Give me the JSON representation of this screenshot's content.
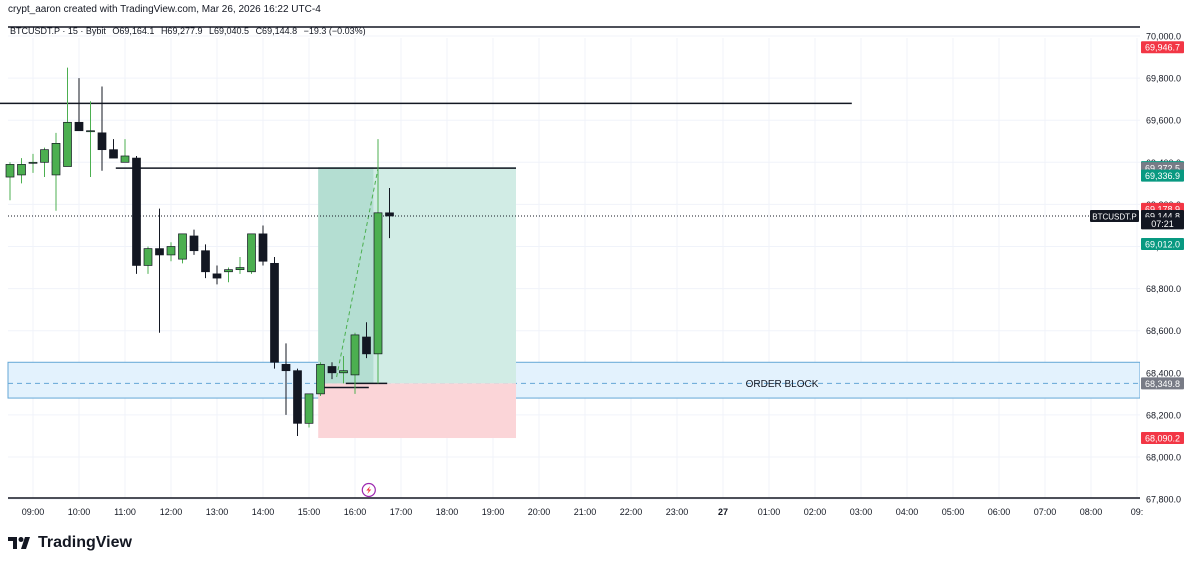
{
  "header": {
    "attribution": "crypt_aaron created with TradingView.com, Mar 26, 2026 16:22 UTC-4"
  },
  "legend": {
    "symbol": "BTCUSDT.P · 15 · Bybit",
    "open": "O69,164.1",
    "high": "H69,277.9",
    "low": "L69,040.5",
    "close": "C69,144.8",
    "change": "−19.3 (−0.03%)"
  },
  "brand": {
    "name": "TradingView"
  },
  "colors": {
    "up": "#4caf50",
    "down": "#131722",
    "accent_red": "#f23645",
    "accent_green": "#089981",
    "target_zone": "#d1ece5",
    "stop_zone": "#fbd5d8",
    "order_block": "#e3f2fd"
  },
  "chart_data": {
    "type": "candlestick",
    "title": "",
    "xlabel": "",
    "ylabel": "",
    "ylim": [
      67780,
      70050
    ],
    "y_ticks": [
      "70,000.0",
      "69,800.0",
      "69,600.0",
      "69,400.0",
      "69,200.0",
      "69,000.0",
      "68,800.0",
      "68,600.0",
      "68,400.0",
      "68,200.0",
      "68,000.0",
      "67,800.0"
    ],
    "y_tick_values": [
      70000,
      69800,
      69600,
      69400,
      69200,
      69000,
      68800,
      68600,
      68400,
      68200,
      68000,
      67800
    ],
    "x_ticks": [
      "09:00",
      "10:00",
      "11:00",
      "12:00",
      "13:00",
      "14:00",
      "15:00",
      "16:00",
      "17:00",
      "18:00",
      "19:00",
      "20:00",
      "21:00",
      "22:00",
      "23:00",
      "27",
      "01:00",
      "02:00",
      "03:00",
      "04:00",
      "05:00",
      "06:00",
      "07:00",
      "08:00",
      "09:"
    ],
    "x_tick_hours": [
      9,
      10,
      11,
      12,
      13,
      14,
      15,
      16,
      17,
      18,
      19,
      20,
      21,
      22,
      23,
      24,
      25,
      26,
      27,
      28,
      29,
      30,
      31,
      32,
      33
    ],
    "candles": [
      {
        "t": 8.5,
        "o": 69330,
        "h": 69400,
        "l": 69220,
        "c": 69390
      },
      {
        "t": 8.75,
        "o": 69340,
        "h": 69420,
        "l": 69300,
        "c": 69390
      },
      {
        "t": 9.0,
        "o": 69400,
        "h": 69440,
        "l": 69350,
        "c": 69400
      },
      {
        "t": 9.25,
        "o": 69400,
        "h": 69470,
        "l": 69330,
        "c": 69460
      },
      {
        "t": 9.5,
        "o": 69340,
        "h": 69540,
        "l": 69170,
        "c": 69490
      },
      {
        "t": 9.75,
        "o": 69380,
        "h": 69850,
        "l": 69380,
        "c": 69590
      },
      {
        "t": 10.0,
        "o": 69590,
        "h": 69800,
        "l": 69560,
        "c": 69550
      },
      {
        "t": 10.25,
        "o": 69550,
        "h": 69690,
        "l": 69330,
        "c": 69550
      },
      {
        "t": 10.5,
        "o": 69540,
        "h": 69760,
        "l": 69360,
        "c": 69460
      },
      {
        "t": 10.75,
        "o": 69460,
        "h": 69510,
        "l": 69440,
        "c": 69420
      },
      {
        "t": 11.0,
        "o": 69400,
        "h": 69510,
        "l": 69400,
        "c": 69430
      },
      {
        "t": 11.25,
        "o": 69420,
        "h": 69430,
        "l": 68870,
        "c": 68910
      },
      {
        "t": 11.5,
        "o": 68910,
        "h": 69000,
        "l": 68870,
        "c": 68990
      },
      {
        "t": 11.75,
        "o": 68990,
        "h": 69180,
        "l": 68590,
        "c": 68960
      },
      {
        "t": 12.0,
        "o": 68960,
        "h": 69020,
        "l": 68930,
        "c": 69000
      },
      {
        "t": 12.25,
        "o": 68940,
        "h": 69060,
        "l": 68920,
        "c": 69060
      },
      {
        "t": 12.5,
        "o": 69050,
        "h": 69080,
        "l": 68960,
        "c": 68980
      },
      {
        "t": 12.75,
        "o": 68980,
        "h": 69010,
        "l": 68850,
        "c": 68880
      },
      {
        "t": 13.0,
        "o": 68870,
        "h": 68910,
        "l": 68820,
        "c": 68850
      },
      {
        "t": 13.25,
        "o": 68880,
        "h": 68900,
        "l": 68830,
        "c": 68890
      },
      {
        "t": 13.5,
        "o": 68890,
        "h": 68950,
        "l": 68870,
        "c": 68900
      },
      {
        "t": 13.75,
        "o": 68880,
        "h": 69060,
        "l": 68870,
        "c": 69060
      },
      {
        "t": 14.0,
        "o": 69060,
        "h": 69100,
        "l": 68910,
        "c": 68930
      },
      {
        "t": 14.25,
        "o": 68920,
        "h": 68950,
        "l": 68420,
        "c": 68450
      },
      {
        "t": 14.5,
        "o": 68440,
        "h": 68540,
        "l": 68200,
        "c": 68410
      },
      {
        "t": 14.75,
        "o": 68410,
        "h": 68420,
        "l": 68100,
        "c": 68160
      },
      {
        "t": 15.0,
        "o": 68160,
        "h": 68300,
        "l": 68140,
        "c": 68300
      },
      {
        "t": 15.25,
        "o": 68300,
        "h": 68450,
        "l": 68290,
        "c": 68440
      },
      {
        "t": 15.5,
        "o": 68430,
        "h": 68450,
        "l": 68370,
        "c": 68400
      },
      {
        "t": 15.75,
        "o": 68400,
        "h": 68480,
        "l": 68350,
        "c": 68410
      },
      {
        "t": 16.0,
        "o": 68390,
        "h": 68590,
        "l": 68300,
        "c": 68580
      },
      {
        "t": 16.25,
        "o": 68570,
        "h": 68640,
        "l": 68470,
        "c": 68490
      },
      {
        "t": 16.5,
        "o": 68490,
        "h": 69510,
        "l": 68350,
        "c": 69160
      },
      {
        "t": 16.75,
        "o": 69160,
        "h": 69278,
        "l": 69040,
        "c": 69145
      }
    ],
    "horizontal_lines": [
      {
        "price": 69680,
        "from_hour": 8.0,
        "to_hour": 26.8
      },
      {
        "price": 69372.5,
        "from_hour": 10.8,
        "to_hour": 19.5
      },
      {
        "price": 68349.8,
        "from_hour": 15.8,
        "to_hour": 16.7
      },
      {
        "price": 68330,
        "from_hour": 15.3,
        "to_hour": 16.3
      }
    ],
    "order_block": {
      "label": "ORDER BLOCK",
      "low": 68280,
      "high": 68450,
      "mid": 68349.8
    },
    "position": {
      "entry": 68349.8,
      "target": 69377.0,
      "stop": 68090.2,
      "from_hour": 15.2,
      "to_hour": 19.5
    },
    "last_price": 69144.8,
    "price_labels": [
      {
        "text": "69,946.7",
        "value": 69946.7,
        "color": "#f23645"
      },
      {
        "text": "69,377.0",
        "value": 69377.0,
        "color": "#089981"
      },
      {
        "text": "69,372.5",
        "value": 69372.5,
        "color": "#787b86"
      },
      {
        "text": "69,336.9",
        "value": 69336.9,
        "color": "#089981"
      },
      {
        "text": "69,178.9",
        "value": 69178.9,
        "color": "#f23645"
      },
      {
        "text": "69,144.8",
        "value": 69144.8,
        "color": "#131722"
      },
      {
        "text": "07:21",
        "value": 69110,
        "color": "#131722"
      },
      {
        "text": "69,012.0",
        "value": 69012.0,
        "color": "#089981"
      },
      {
        "text": "68,349.8",
        "value": 68349.8,
        "color": "#787b86"
      },
      {
        "text": "68,090.2",
        "value": 68090.2,
        "color": "#f23645"
      }
    ],
    "symbol_tag": "BTCUSDT.P"
  }
}
